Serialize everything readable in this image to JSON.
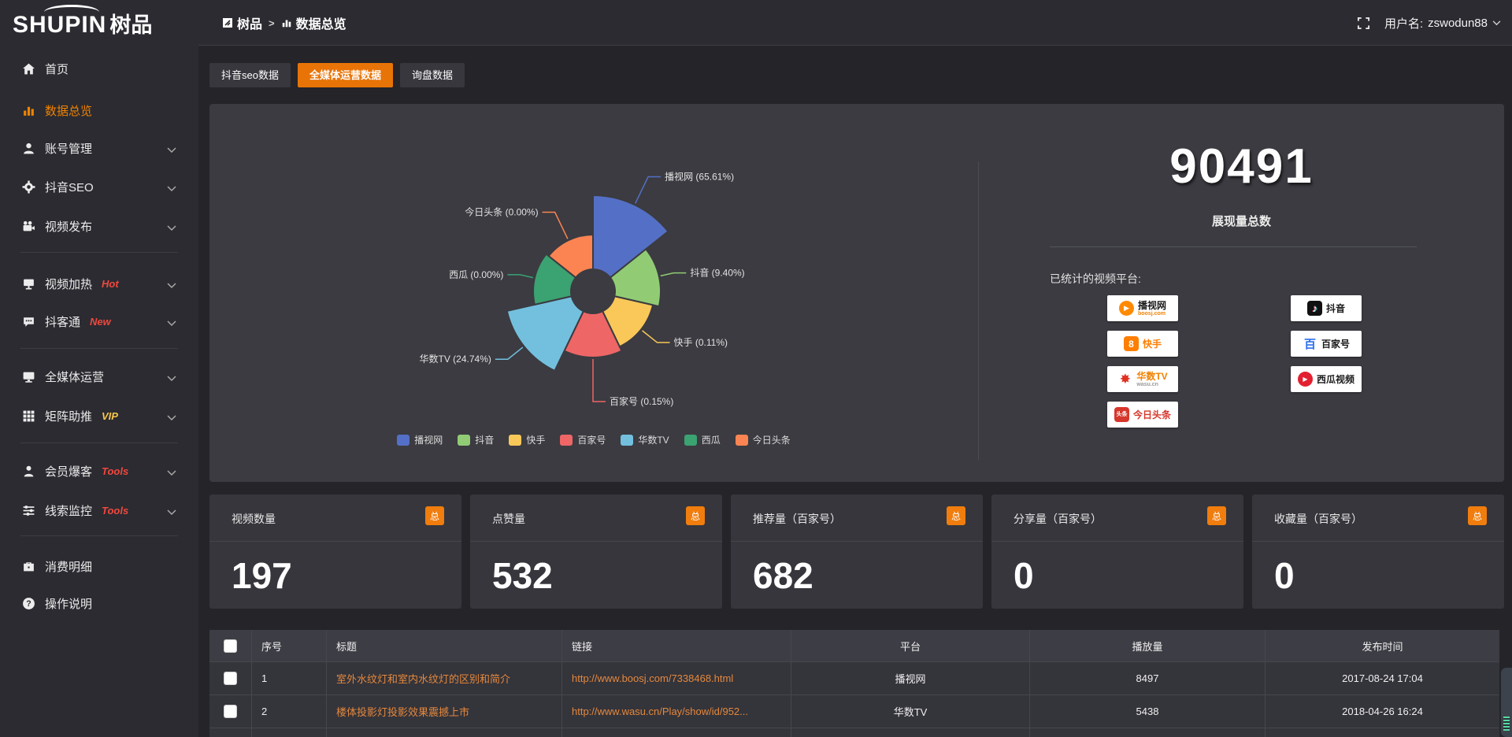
{
  "header": {
    "logo_en": "SHUPIN",
    "logo_cn": "树品",
    "breadcrumb": {
      "root": "树品",
      "separator": ">",
      "current": "数据总览"
    },
    "user": {
      "label": "用户名:",
      "name": "zswodun88"
    }
  },
  "sidebar": {
    "items": [
      {
        "type": "item",
        "label": "首页",
        "icon": "home",
        "badge": "",
        "badge_color": "",
        "chevron": false,
        "active": false
      },
      {
        "type": "item",
        "label": "数据总览",
        "icon": "bar-chart",
        "badge": "",
        "badge_color": "",
        "chevron": false,
        "active": true
      },
      {
        "type": "item",
        "label": "账号管理",
        "icon": "user",
        "badge": "",
        "badge_color": "",
        "chevron": true,
        "active": false
      },
      {
        "type": "item",
        "label": "抖音SEO",
        "icon": "gear",
        "badge": "",
        "badge_color": "",
        "chevron": true,
        "active": false
      },
      {
        "type": "item",
        "label": "视频发布",
        "icon": "video-camera",
        "badge": "",
        "badge_color": "",
        "chevron": true,
        "active": false
      },
      {
        "type": "divider"
      },
      {
        "type": "item",
        "label": "视频加热",
        "icon": "heat-screen",
        "badge": "Hot",
        "badge_color": "#f0483e",
        "chevron": true,
        "active": false
      },
      {
        "type": "item",
        "label": "抖客通",
        "icon": "chat",
        "badge": "New",
        "badge_color": "#f0483e",
        "chevron": true,
        "active": false
      },
      {
        "type": "divider"
      },
      {
        "type": "item",
        "label": "全媒体运营",
        "icon": "monitor",
        "badge": "",
        "badge_color": "",
        "chevron": true,
        "active": false
      },
      {
        "type": "item",
        "label": "矩阵助推",
        "icon": "grid",
        "badge": "VIP",
        "badge_color": "#f6c64b",
        "chevron": true,
        "active": false
      },
      {
        "type": "divider"
      },
      {
        "type": "item",
        "label": "会员爆客",
        "icon": "person",
        "badge": "Tools",
        "badge_color": "#f0483e",
        "chevron": true,
        "active": false
      },
      {
        "type": "item",
        "label": "线索监控",
        "icon": "sliders",
        "badge": "Tools",
        "badge_color": "#f0483e",
        "chevron": true,
        "active": false
      },
      {
        "type": "divider"
      },
      {
        "type": "item",
        "label": "消费明细",
        "icon": "wallet",
        "badge": "",
        "badge_color": "",
        "chevron": false,
        "active": false
      },
      {
        "type": "item",
        "label": "操作说明",
        "icon": "question",
        "badge": "",
        "badge_color": "",
        "chevron": false,
        "active": false
      }
    ]
  },
  "tabs": [
    {
      "label": "抖音seo数据",
      "active": false
    },
    {
      "label": "全媒体运营数据",
      "active": true
    },
    {
      "label": "询盘数据",
      "active": false
    }
  ],
  "chart_data": {
    "type": "pie",
    "subtype": "nightingale-rose",
    "categories": [
      "播视网",
      "抖音",
      "快手",
      "百家号",
      "华数TV",
      "西瓜",
      "今日头条"
    ],
    "values_percent": [
      65.61,
      9.4,
      0.11,
      0.15,
      24.74,
      0.0,
      0.0
    ],
    "labels": [
      "播视网 (65.61%)",
      "抖音 (9.40%)",
      "快手 (0.11%)",
      "百家号 (0.15%)",
      "华数TV (24.74%)",
      "西瓜 (0.00%)",
      "今日头条 (0.00%)"
    ],
    "colors": [
      "#5470c6",
      "#91cc75",
      "#fac858",
      "#ee6666",
      "#73c0de",
      "#3ba272",
      "#fc8452"
    ],
    "legend_position": "bottom",
    "display_radii": [
      122,
      86,
      78,
      84,
      112,
      76,
      72
    ],
    "inner_radius": 28
  },
  "summary": {
    "total": "90491",
    "total_label": "展现量总数",
    "platforms_title": "已统计的视频平台:",
    "platform_columns": [
      [
        {
          "name": "播视网",
          "sub": "boosj.com",
          "logo": "boosj"
        },
        {
          "name": "快手",
          "sub": "",
          "logo": "kuaishou"
        },
        {
          "name": "华数TV",
          "sub": "wasu.cn",
          "logo": "wasu"
        },
        {
          "name": "今日头条",
          "sub": "",
          "logo": "toutiao"
        }
      ],
      [
        {
          "name": "抖音",
          "sub": "",
          "logo": "douyin"
        },
        {
          "name": "百家号",
          "sub": "",
          "logo": "baijiahao"
        },
        {
          "name": "西瓜视频",
          "sub": "",
          "logo": "xigua"
        }
      ]
    ]
  },
  "stat_cards": [
    {
      "title": "视频数量",
      "badge": "总",
      "value": "197"
    },
    {
      "title": "点赞量",
      "badge": "总",
      "value": "532"
    },
    {
      "title": "推荐量（百家号）",
      "badge": "总",
      "value": "682"
    },
    {
      "title": "分享量（百家号）",
      "badge": "总",
      "value": "0"
    },
    {
      "title": "收藏量（百家号）",
      "badge": "总",
      "value": "0"
    }
  ],
  "table": {
    "columns": [
      "序号",
      "标题",
      "链接",
      "平台",
      "播放量",
      "发布时间"
    ],
    "rows": [
      {
        "index": "1",
        "title": "室外水纹灯和室内水纹灯的区别和简介",
        "link": "http://www.boosj.com/7338468.html",
        "platform": "播视网",
        "views": "8497",
        "time": "2017-08-24 17:04"
      },
      {
        "index": "2",
        "title": "楼体投影灯投影效果震撼上市",
        "link": "http://www.wasu.cn/Play/show/id/952...",
        "platform": "华数TV",
        "views": "5438",
        "time": "2018-04-26 16:24"
      }
    ]
  }
}
